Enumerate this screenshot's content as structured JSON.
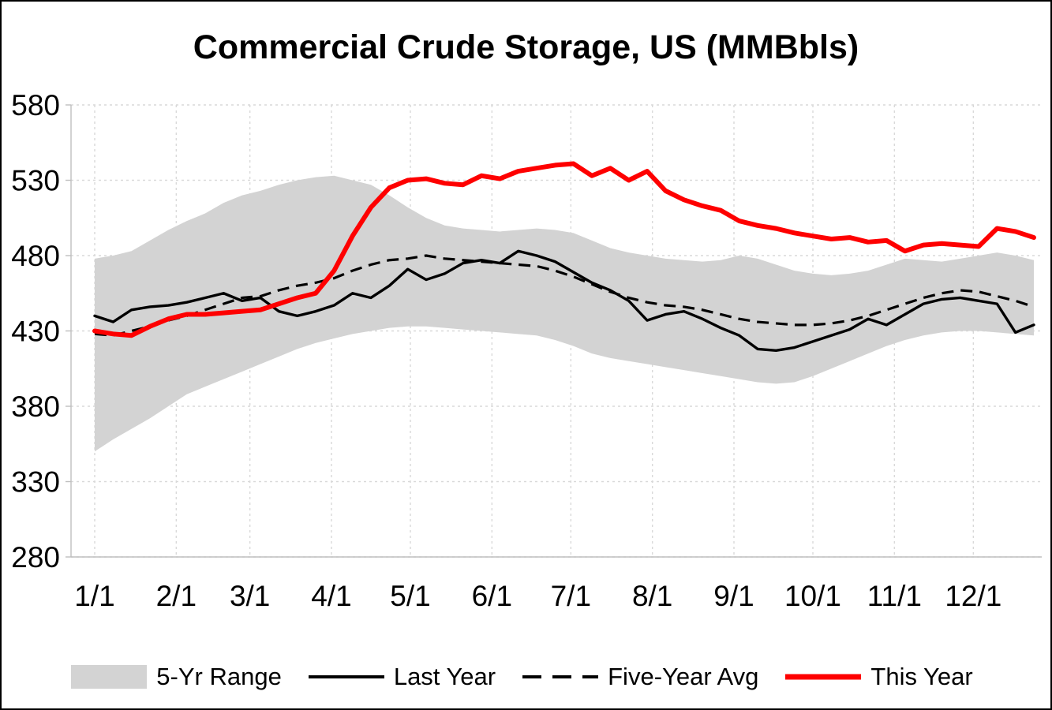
{
  "title": "Commercial Crude Storage, US (MMBbls)",
  "legend": [
    {
      "label": "5-Yr Range",
      "type": "area",
      "color": "#d3d3d3"
    },
    {
      "label": "Last Year",
      "type": "line-solid",
      "color": "#000000"
    },
    {
      "label": "Five-Year Avg",
      "type": "line-dashed",
      "color": "#000000"
    },
    {
      "label": "This Year",
      "type": "line-solid-thick",
      "color": "#fe0000"
    }
  ],
  "colors": {
    "range_fill": "#d3d3d3",
    "last_year": "#000000",
    "five_year_avg": "#000000",
    "this_year": "#fe0000",
    "gridline": "#d9d9d9",
    "axis": "#bfbfbf"
  },
  "chart_data": {
    "type": "line",
    "title": "Commercial Crude Storage, US (MMBbls)",
    "ylabel": "",
    "xlabel": "",
    "ylim": [
      280,
      580
    ],
    "y_ticks": [
      280,
      330,
      380,
      430,
      480,
      530,
      580
    ],
    "grid": true,
    "legend_position": "bottom",
    "x_tick_labels": [
      {
        "label": "1/1",
        "day": 1
      },
      {
        "label": "2/1",
        "day": 32
      },
      {
        "label": "3/1",
        "day": 60
      },
      {
        "label": "4/1",
        "day": 91
      },
      {
        "label": "5/1",
        "day": 121
      },
      {
        "label": "6/1",
        "day": 152
      },
      {
        "label": "7/1",
        "day": 182
      },
      {
        "label": "8/1",
        "day": 213
      },
      {
        "label": "9/1",
        "day": 244
      },
      {
        "label": "10/1",
        "day": 274
      },
      {
        "label": "11/1",
        "day": 305
      },
      {
        "label": "12/1",
        "day": 335
      }
    ],
    "categories": [
      "1/1",
      "1/8",
      "1/15",
      "1/22",
      "1/29",
      "2/5",
      "2/12",
      "2/19",
      "2/26",
      "3/5",
      "3/12",
      "3/19",
      "3/26",
      "4/2",
      "4/9",
      "4/16",
      "4/23",
      "4/30",
      "5/7",
      "5/14",
      "5/21",
      "5/28",
      "6/4",
      "6/11",
      "6/18",
      "6/25",
      "7/2",
      "7/9",
      "7/16",
      "7/23",
      "7/30",
      "8/6",
      "8/13",
      "8/20",
      "8/27",
      "9/3",
      "9/10",
      "9/17",
      "9/24",
      "10/1",
      "10/8",
      "10/15",
      "10/22",
      "10/29",
      "11/5",
      "11/12",
      "11/19",
      "11/26",
      "12/3",
      "12/10",
      "12/17",
      "12/24"
    ],
    "series": [
      {
        "name": "5-Yr Range High",
        "role": "band-upper",
        "values": [
          478,
          480,
          483,
          490,
          497,
          503,
          508,
          515,
          520,
          523,
          527,
          530,
          532,
          533,
          530,
          527,
          520,
          512,
          505,
          500,
          498,
          497,
          496,
          497,
          498,
          497,
          495,
          490,
          485,
          482,
          480,
          478,
          477,
          476,
          477,
          480,
          478,
          474,
          470,
          468,
          467,
          468,
          470,
          474,
          478,
          477,
          476,
          478,
          480,
          482,
          480,
          477
        ]
      },
      {
        "name": "5-Yr Range Low",
        "role": "band-lower",
        "values": [
          350,
          358,
          365,
          372,
          380,
          388,
          393,
          398,
          403,
          408,
          413,
          418,
          422,
          425,
          428,
          430,
          432,
          433,
          433,
          432,
          431,
          430,
          429,
          428,
          427,
          424,
          420,
          415,
          412,
          410,
          408,
          406,
          404,
          402,
          400,
          398,
          396,
          395,
          396,
          400,
          405,
          410,
          415,
          420,
          424,
          427,
          429,
          430,
          430,
          429,
          428,
          427
        ]
      },
      {
        "name": "Last Year",
        "role": "line",
        "values": [
          440,
          436,
          444,
          446,
          447,
          449,
          452,
          455,
          450,
          452,
          443,
          440,
          443,
          447,
          455,
          452,
          460,
          471,
          464,
          468,
          475,
          477,
          475,
          483,
          480,
          476,
          469,
          462,
          457,
          450,
          437,
          441,
          443,
          438,
          432,
          427,
          418,
          417,
          419,
          423,
          427,
          431,
          438,
          434,
          441,
          448,
          451,
          452,
          450,
          448,
          429,
          434
        ]
      },
      {
        "name": "Five-Year Avg",
        "role": "line-dashed",
        "values": [
          428,
          427,
          430,
          433,
          437,
          440,
          444,
          448,
          452,
          453,
          457,
          460,
          462,
          465,
          470,
          474,
          477,
          478,
          480,
          478,
          477,
          476,
          475,
          474,
          473,
          470,
          466,
          461,
          456,
          452,
          449,
          447,
          446,
          444,
          441,
          438,
          436,
          435,
          434,
          434,
          435,
          437,
          440,
          444,
          448,
          452,
          455,
          457,
          456,
          453,
          450,
          446
        ]
      },
      {
        "name": "This Year",
        "role": "line-thick",
        "values": [
          430,
          428,
          427,
          433,
          438,
          441,
          441,
          442,
          443,
          444,
          448,
          452,
          455,
          470,
          493,
          512,
          525,
          530,
          531,
          528,
          527,
          533,
          531,
          536,
          538,
          540,
          541,
          533,
          538,
          530,
          536,
          523,
          517,
          513,
          510,
          503,
          500,
          498,
          495,
          493,
          491,
          492,
          489,
          490,
          483,
          487,
          488,
          487,
          486,
          498,
          496,
          492
        ]
      }
    ]
  }
}
